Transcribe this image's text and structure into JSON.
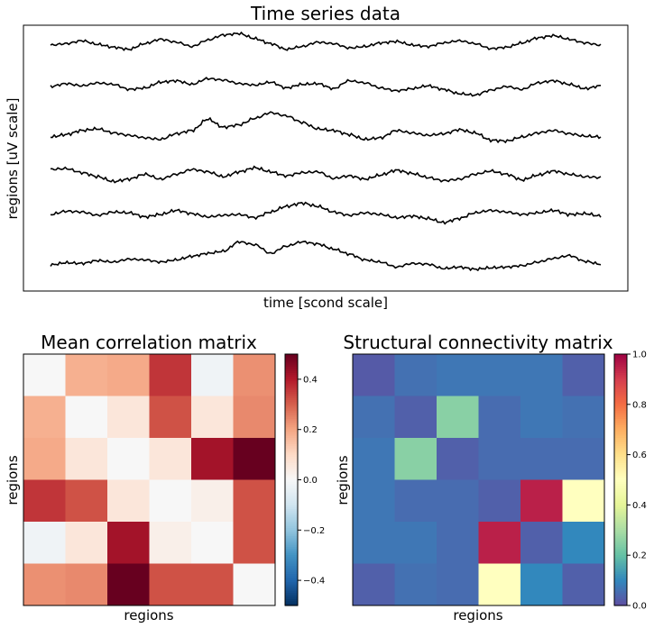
{
  "chart_data": [
    {
      "type": "line",
      "title": "Time series data",
      "xlabel": "time [scond scale]",
      "ylabel": "regions [uV scale]",
      "grid": false,
      "legend": "none",
      "series": [
        {
          "values": [
            0.0,
            0.2,
            0.6,
            0.1,
            -0.3,
            -0.6,
            0.2,
            0.8,
            0.4,
            -0.2,
            0.7,
            1.4,
            1.6,
            0.9,
            0.2,
            -0.6,
            -0.2,
            0.4,
            0.2,
            -0.4,
            -0.2,
            0.3,
            0.5,
            0.0,
            -0.2,
            0.3,
            0.6,
            0.2,
            -0.5,
            -0.3,
            0.3,
            1.0,
            1.3,
            0.8,
            0.3,
            0.0
          ]
        },
        {
          "values": [
            0.0,
            0.4,
            0.1,
            0.5,
            0.3,
            -0.4,
            -0.2,
            0.6,
            0.8,
            0.3,
            1.1,
            0.9,
            0.4,
            0.2,
            0.6,
            -0.2,
            0.3,
            0.4,
            -0.3,
            0.8,
            0.5,
            -0.2,
            -0.6,
            -0.3,
            0.1,
            -0.4,
            -1.0,
            -1.2,
            -0.5,
            0.0,
            -0.4,
            0.5,
            0.8,
            0.3,
            -0.3,
            0.1
          ]
        },
        {
          "values": [
            0.0,
            0.3,
            0.8,
            1.0,
            0.5,
            0.2,
            -0.1,
            -0.3,
            0.4,
            0.8,
            2.2,
            1.2,
            1.5,
            2.3,
            3.0,
            2.6,
            1.8,
            1.0,
            0.8,
            0.3,
            -0.3,
            -0.1,
            0.8,
            0.5,
            0.2,
            0.4,
            0.9,
            0.5,
            -0.4,
            -0.5,
            0.0,
            0.5,
            0.8,
            0.4,
            0.1,
            0.0
          ]
        },
        {
          "values": [
            0.0,
            0.1,
            -0.4,
            -0.9,
            -1.5,
            -1.2,
            -0.6,
            -1.2,
            -0.6,
            0.0,
            -0.3,
            -0.9,
            -0.3,
            0.2,
            -0.3,
            -0.8,
            -0.4,
            -0.3,
            -1.1,
            -0.8,
            -1.2,
            -0.7,
            -0.1,
            -0.5,
            -1.0,
            -1.4,
            -1.2,
            -0.6,
            -0.2,
            -0.6,
            -1.3,
            -0.7,
            -0.2,
            -0.6,
            -0.9,
            -1.0
          ]
        },
        {
          "values": [
            0.0,
            0.4,
            0.3,
            -0.1,
            0.3,
            0.2,
            -0.3,
            0.0,
            0.5,
            0.1,
            -0.3,
            -0.1,
            0.0,
            -0.4,
            0.3,
            1.0,
            1.4,
            1.0,
            0.3,
            -0.1,
            0.2,
            0.0,
            -0.4,
            -0.2,
            -0.5,
            -1.0,
            -0.5,
            0.2,
            0.5,
            0.3,
            0.0,
            0.2,
            0.5,
            0.0,
            0.1,
            -0.2
          ]
        },
        {
          "values": [
            0.0,
            0.3,
            0.2,
            0.6,
            0.4,
            0.8,
            0.7,
            0.4,
            0.7,
            1.2,
            1.6,
            1.9,
            3.2,
            2.8,
            1.6,
            2.6,
            3.2,
            2.9,
            2.2,
            1.5,
            0.7,
            0.4,
            -0.3,
            0.2,
            0.1,
            -0.5,
            -0.3,
            -0.6,
            -0.4,
            -0.3,
            -0.1,
            0.4,
            0.9,
            1.3,
            0.5,
            0.1
          ]
        }
      ]
    },
    {
      "type": "heatmap",
      "title": "Mean correlation matrix",
      "xlabel": "regions",
      "ylabel": "regions",
      "colormap": "RdBu_r",
      "vmin": -0.5,
      "vmax": 0.5,
      "colorbar_ticks": [
        "0.4",
        "0.2",
        "0.0",
        "−0.2",
        "−0.4"
      ],
      "colorbar_tick_values": [
        0.4,
        0.2,
        0.0,
        -0.2,
        -0.4
      ],
      "matrix": [
        [
          0.0,
          0.18,
          0.19,
          0.36,
          -0.02,
          0.23
        ],
        [
          0.18,
          0.0,
          0.06,
          0.32,
          0.06,
          0.24
        ],
        [
          0.19,
          0.06,
          0.0,
          0.06,
          0.42,
          0.5
        ],
        [
          0.36,
          0.32,
          0.06,
          0.0,
          0.03,
          0.32
        ],
        [
          -0.02,
          0.06,
          0.42,
          0.03,
          0.0,
          0.32
        ],
        [
          0.23,
          0.24,
          0.5,
          0.32,
          0.32,
          0.0
        ]
      ]
    },
    {
      "type": "heatmap",
      "title": "Structural connectivity matrix",
      "xlabel": "regions",
      "ylabel": "regions",
      "colormap": "Spectral_r",
      "vmin": 0.0,
      "vmax": 1.0,
      "colorbar_ticks": [
        "1.0",
        "0.8",
        "0.6",
        "0.4",
        "0.2",
        "0.0"
      ],
      "colorbar_tick_values": [
        1.0,
        0.8,
        0.6,
        0.4,
        0.2,
        0.0
      ],
      "matrix": [
        [
          0.02,
          0.06,
          0.07,
          0.07,
          0.07,
          0.03
        ],
        [
          0.06,
          0.03,
          0.25,
          0.05,
          0.07,
          0.06
        ],
        [
          0.07,
          0.25,
          0.03,
          0.05,
          0.05,
          0.05
        ],
        [
          0.07,
          0.05,
          0.05,
          0.03,
          0.95,
          0.5
        ],
        [
          0.07,
          0.07,
          0.05,
          0.95,
          0.03,
          0.1
        ],
        [
          0.03,
          0.06,
          0.05,
          0.5,
          0.1,
          0.03
        ]
      ]
    }
  ]
}
